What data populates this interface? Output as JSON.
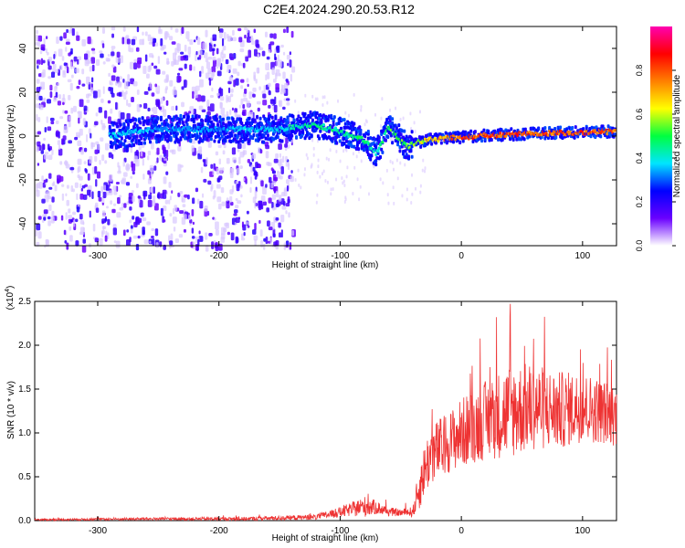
{
  "title": "C2E4.2024.290.20.53.R12",
  "chart_data": [
    {
      "type": "heatmap",
      "xlabel": "Height of straight line (km)",
      "ylabel": "Frequency (Hz)",
      "xlim": [
        -352,
        128
      ],
      "ylim": [
        -50,
        50
      ],
      "xticks": [
        -300,
        -200,
        -100,
        0,
        100
      ],
      "xtick_labels": [
        "-300",
        "-200",
        "-100",
        "0",
        "100"
      ],
      "yticks": [
        -40,
        -20,
        0,
        20,
        40
      ],
      "ytick_labels": [
        "-40",
        "-20",
        "0",
        "20",
        "40"
      ],
      "colorbar": {
        "label": "Normalized spectral amplitude",
        "range": [
          0,
          1
        ],
        "ticks": [
          0.0,
          0.2,
          0.4,
          0.6,
          0.8
        ],
        "tick_labels": [
          "0.0",
          "0.2",
          "0.4",
          "0.6",
          "0.8"
        ],
        "colormap": [
          "#ffffff",
          "#6a00ff",
          "#0000ff",
          "#00e5ff",
          "#00ff40",
          "#ffff00",
          "#ff8000",
          "#ff0000",
          "#ff00b0"
        ]
      },
      "noise_band": {
        "x": [
          -352,
          -140
        ],
        "amplitude": 0.2
      },
      "ridge": [
        {
          "x": -290,
          "freq": 0,
          "amplitude": 0.4
        },
        {
          "x": -250,
          "freq": 3,
          "amplitude": 0.35
        },
        {
          "x": -200,
          "freq": 3,
          "amplitude": 0.35
        },
        {
          "x": -150,
          "freq": 3,
          "amplitude": 0.4
        },
        {
          "x": -120,
          "freq": 5,
          "amplitude": 0.5
        },
        {
          "x": -100,
          "freq": 2,
          "amplitude": 0.45
        },
        {
          "x": -80,
          "freq": -2,
          "amplitude": 0.5
        },
        {
          "x": -70,
          "freq": -8,
          "amplitude": 0.4
        },
        {
          "x": -60,
          "freq": 4,
          "amplitude": 0.55
        },
        {
          "x": -45,
          "freq": -5,
          "amplitude": 0.55
        },
        {
          "x": -30,
          "freq": -2,
          "amplitude": 0.65
        },
        {
          "x": -10,
          "freq": -1,
          "amplitude": 0.8
        },
        {
          "x": 20,
          "freq": 0,
          "amplitude": 0.85
        },
        {
          "x": 60,
          "freq": 1,
          "amplitude": 0.85
        },
        {
          "x": 100,
          "freq": 1.5,
          "amplitude": 0.85
        },
        {
          "x": 128,
          "freq": 2,
          "amplitude": 0.8
        }
      ]
    },
    {
      "type": "line",
      "xlabel": "Height of straight line (km)",
      "ylabel": "SNR (10 * v/v)",
      "y_multiplier_label": "(x10",
      "y_multiplier_exp": "4",
      "xlim": [
        -352,
        128
      ],
      "ylim": [
        0,
        2.5
      ],
      "xticks": [
        -300,
        -200,
        -100,
        0,
        100
      ],
      "xtick_labels": [
        "-300",
        "-200",
        "-100",
        "0",
        "100"
      ],
      "yticks": [
        0,
        0.5,
        1.0,
        1.5,
        2.0,
        2.5
      ],
      "ytick_labels": [
        "0.0",
        "0.5",
        "1.0",
        "1.5",
        "2.0",
        "2.5"
      ],
      "series": [
        {
          "color": "#ee3333",
          "envelope": {
            "x": [
              -352,
              -260,
              -180,
              -120,
              -105,
              -90,
              -80,
              -70,
              -60,
              -50,
              -40,
              -35,
              -30,
              -25,
              -20,
              -10,
              0,
              20,
              40,
              60,
              80,
              100,
              128
            ],
            "mean": [
              0.01,
              0.02,
              0.02,
              0.04,
              0.08,
              0.13,
              0.16,
              0.15,
              0.1,
              0.09,
              0.1,
              0.35,
              0.6,
              0.75,
              0.8,
              0.9,
              1.0,
              1.15,
              1.25,
              1.3,
              1.25,
              1.3,
              1.2
            ],
            "spread": [
              0.01,
              0.015,
              0.02,
              0.03,
              0.05,
              0.08,
              0.12,
              0.08,
              0.05,
              0.04,
              0.06,
              0.25,
              0.3,
              0.35,
              0.35,
              0.35,
              0.4,
              0.45,
              0.55,
              0.5,
              0.45,
              0.4,
              0.35
            ]
          }
        }
      ]
    }
  ]
}
